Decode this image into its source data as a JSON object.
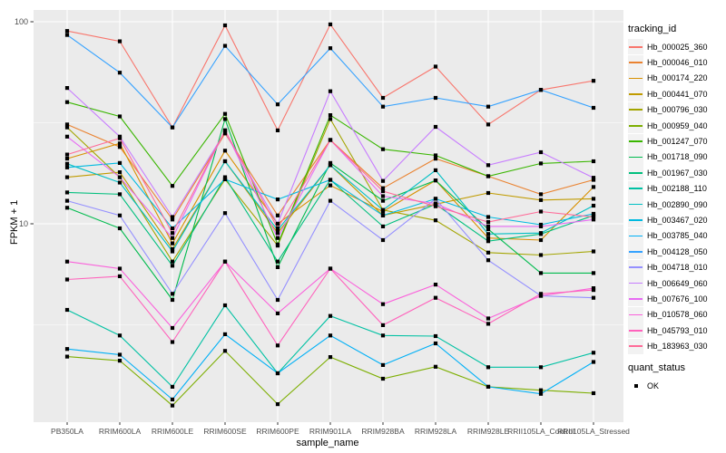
{
  "figure": {
    "background": "#FFFFFF",
    "panel_background": "#EBEBEB",
    "grid_color": "#FFFFFF",
    "tick_color": "#333333",
    "tick_label_color": "#4D4D4D",
    "point_color": "#000000"
  },
  "legend": {
    "tracking_title": "tracking_id",
    "quant_title": "quant_status",
    "quant_entries": [
      {
        "label": "OK",
        "shape": "filled-square",
        "color": "#000000"
      }
    ]
  },
  "chart_data": {
    "type": "line",
    "x_label": "sample_name",
    "y_label": "FPKM + 1",
    "y_scale": "log10",
    "y_major_ticks": [
      100,
      10
    ],
    "y_minor_ticks": [
      31.623,
      3.162
    ],
    "ylim": [
      1.05,
      115
    ],
    "legend_position": "right",
    "grid": true,
    "point_shape": "filled-square",
    "point_legend_label": "OK",
    "categories": [
      "PB350LA",
      "RRIM600LA",
      "RRIM600LE",
      "RRIM600SE",
      "RRIM600PE",
      "RRIM901LA",
      "RRIM928BA",
      "RRIM928LA",
      "RRIM928LE",
      "RRII105LA_Control",
      "RRII105LA_Stressed"
    ],
    "series": [
      {
        "name": "Hb_000025_360",
        "color": "#F8766D",
        "values": [
          90,
          80,
          30,
          96,
          29,
          97,
          42,
          60,
          31,
          46,
          51
        ]
      },
      {
        "name": "Hb_000046_010",
        "color": "#EA8331",
        "values": [
          31,
          24,
          10.5,
          28,
          11,
          26,
          15,
          21,
          17.2,
          14,
          16.5
        ]
      },
      {
        "name": "Hb_000174_220",
        "color": "#D89000",
        "values": [
          21,
          25,
          8.0,
          23,
          10,
          15.5,
          11.5,
          16.4,
          8.5,
          8.3,
          15.2
        ]
      },
      {
        "name": "Hb_000441_070",
        "color": "#C09B00",
        "values": [
          17,
          18,
          7.5,
          20.4,
          9.0,
          19.5,
          11,
          12.5,
          14.2,
          13.1,
          13.3
        ]
      },
      {
        "name": "Hb_000796_030",
        "color": "#A3A500",
        "values": [
          30,
          17,
          6.5,
          16.6,
          7.8,
          33,
          11.7,
          10.4,
          7.2,
          7.0,
          7.3
        ]
      },
      {
        "name": "Hb_000959_040",
        "color": "#7CAE00",
        "values": [
          2.2,
          2.1,
          1.26,
          2.35,
          1.28,
          2.19,
          1.71,
          1.96,
          1.56,
          1.5,
          1.45
        ]
      },
      {
        "name": "Hb_001247_070",
        "color": "#39B600",
        "values": [
          40,
          34,
          15.4,
          35,
          7.9,
          34.5,
          23.4,
          21.8,
          17.2,
          19.9,
          20.4
        ]
      },
      {
        "name": "Hb_001718_090",
        "color": "#00BB4E",
        "values": [
          12,
          9.5,
          4.2,
          33,
          6.1,
          20,
          13,
          16.4,
          9.4,
          5.7,
          5.7
        ]
      },
      {
        "name": "Hb_001967_030",
        "color": "#00BF7D",
        "values": [
          14.3,
          14,
          6.2,
          17,
          6.5,
          16.5,
          9.7,
          12.5,
          8.2,
          8.9,
          11
        ]
      },
      {
        "name": "Hb_002188_110",
        "color": "#00C1A3",
        "values": [
          3.75,
          2.8,
          1.56,
          3.95,
          1.82,
          3.5,
          2.8,
          2.78,
          1.95,
          1.95,
          2.3
        ]
      },
      {
        "name": "Hb_002890_090",
        "color": "#00BFC4",
        "values": [
          19.8,
          16,
          7.3,
          20.4,
          9.3,
          19.5,
          11.7,
          18.4,
          8.9,
          9.0,
          12.3
        ]
      },
      {
        "name": "Hb_003467_020",
        "color": "#00BAE0",
        "values": [
          19,
          20,
          9.5,
          16.6,
          13.2,
          16.5,
          11,
          13.3,
          10.8,
          9.9,
          11.2
        ]
      },
      {
        "name": "Hb_003785_040",
        "color": "#00B0F6",
        "values": [
          2.4,
          2.25,
          1.35,
          2.84,
          1.82,
          2.8,
          2.0,
          2.56,
          1.56,
          1.44,
          2.07
        ]
      },
      {
        "name": "Hb_004128_050",
        "color": "#35A2FF",
        "values": [
          86,
          56,
          30,
          76,
          39,
          74,
          38,
          42,
          38,
          46,
          37.5
        ]
      },
      {
        "name": "Hb_004718_010",
        "color": "#9590FF",
        "values": [
          13,
          11,
          4.5,
          11.3,
          4.2,
          13,
          8.3,
          13.3,
          6.6,
          4.4,
          4.3
        ]
      },
      {
        "name": "Hb_006649_060",
        "color": "#C77CFF",
        "values": [
          47,
          27,
          10.8,
          28.5,
          10,
          45.3,
          16.3,
          30.2,
          19.5,
          22.6,
          16.9
        ]
      },
      {
        "name": "Hb_007676_100",
        "color": "#E76BF3",
        "values": [
          27,
          17,
          8.5,
          29,
          8.5,
          26,
          13.7,
          12.6,
          9.7,
          9.7,
          10.5
        ]
      },
      {
        "name": "Hb_010578_060",
        "color": "#FA62DB",
        "values": [
          6.5,
          6.0,
          3.05,
          6.5,
          3.6,
          6.0,
          4.0,
          5.0,
          3.4,
          4.4,
          4.8
        ]
      },
      {
        "name": "Hb_045793_010",
        "color": "#FF62BC",
        "values": [
          5.3,
          5.5,
          2.6,
          6.5,
          2.5,
          6.0,
          3.15,
          4.3,
          3.2,
          4.5,
          4.7
        ]
      },
      {
        "name": "Hb_183963_030",
        "color": "#FF6A98",
        "values": [
          22,
          26.5,
          9.0,
          29,
          9.5,
          26,
          14.5,
          12.2,
          10.2,
          11.5,
          10.8
        ]
      }
    ]
  }
}
